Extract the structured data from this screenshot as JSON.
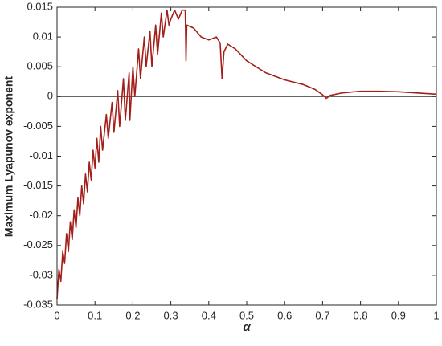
{
  "chart_data": {
    "type": "line",
    "xlabel": "α",
    "ylabel": "Maximum Lyapunov exponent",
    "x": [
      0,
      0.005,
      0.01,
      0.015,
      0.02,
      0.025,
      0.03,
      0.035,
      0.04,
      0.045,
      0.05,
      0.055,
      0.06,
      0.065,
      0.07,
      0.075,
      0.08,
      0.085,
      0.09,
      0.095,
      0.1,
      0.105,
      0.11,
      0.115,
      0.12,
      0.13,
      0.135,
      0.145,
      0.15,
      0.16,
      0.165,
      0.175,
      0.18,
      0.19,
      0.192,
      0.2,
      0.205,
      0.215,
      0.22,
      0.23,
      0.235,
      0.245,
      0.25,
      0.26,
      0.265,
      0.275,
      0.28,
      0.29,
      0.295,
      0.3,
      0.31,
      0.32,
      0.33,
      0.338,
      0.34,
      0.342,
      0.36,
      0.38,
      0.4,
      0.42,
      0.43,
      0.435,
      0.44,
      0.45,
      0.47,
      0.5,
      0.55,
      0.6,
      0.65,
      0.68,
      0.7,
      0.71,
      0.72,
      0.75,
      0.8,
      0.85,
      0.9,
      0.95,
      1
    ],
    "values": [
      -0.034,
      -0.029,
      -0.031,
      -0.026,
      -0.028,
      -0.023,
      -0.026,
      -0.021,
      -0.024,
      -0.019,
      -0.022,
      -0.017,
      -0.02,
      -0.015,
      -0.018,
      -0.013,
      -0.016,
      -0.011,
      -0.014,
      -0.009,
      -0.012,
      -0.007,
      -0.011,
      -0.005,
      -0.009,
      -0.003,
      -0.007,
      -0.001,
      -0.006,
      0.001,
      -0.005,
      0.003,
      -0.004,
      0.004,
      -0.004,
      0.005,
      0,
      0.008,
      0.003,
      0.01,
      0.005,
      0.011,
      0.005,
      0.012,
      0.007,
      0.014,
      0.01,
      0.0145,
      0.012,
      0.013,
      0.0145,
      0.013,
      0.0145,
      0.0145,
      0.006,
      0.012,
      0.0115,
      0.01,
      0.0095,
      0.01,
      0.009,
      0.003,
      0.0075,
      0.0088,
      0.008,
      0.006,
      0.004,
      0.0028,
      0.002,
      0.0012,
      0.0003,
      -0.0003,
      0.0002,
      0.0006,
      0.0009,
      0.0009,
      0.0008,
      0.0006,
      0.0004
    ],
    "color": "#a31f1a",
    "zero_line": true,
    "xlim": [
      0,
      1
    ],
    "xticks": [
      0,
      0.1,
      0.2,
      0.3,
      0.4,
      0.5,
      0.6,
      0.7,
      0.8,
      0.9,
      1
    ],
    "ylim": [
      -0.035,
      0.015
    ],
    "yticks": [
      -0.035,
      -0.03,
      -0.025,
      -0.02,
      -0.015,
      -0.01,
      -0.005,
      0,
      0.005,
      0.01,
      0.015
    ]
  }
}
